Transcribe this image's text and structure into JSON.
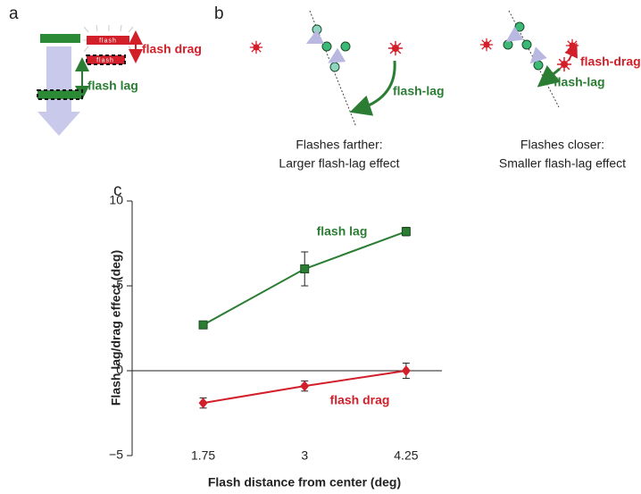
{
  "panel_a": {
    "label": "a",
    "flash_top": "flash",
    "flash_bottom": "flash",
    "drag_label": "flash drag",
    "lag_label": "flash lag"
  },
  "panel_b": {
    "label": "b",
    "left_annotation": "flash-lag",
    "left_caption": [
      "Flashes farther:",
      "Larger flash-lag effect"
    ],
    "right_drag_annotation": "flash-drag",
    "right_lag_annotation": "flash-lag",
    "right_caption": [
      "Flashes closer:",
      "Smaller flash-lag effect"
    ]
  },
  "chart_data": {
    "type": "line",
    "panel_label": "c",
    "xlabel": "Flash distance from center (deg)",
    "ylabel": "Flash lag/drag effect (deg)",
    "x": [
      1.75,
      3,
      4.25
    ],
    "series": [
      {
        "name": "flash lag",
        "color": "#2a7d33",
        "marker": "square",
        "values": [
          2.7,
          6.0,
          8.2
        ],
        "errors": [
          0.2,
          1.0,
          0.25
        ]
      },
      {
        "name": "flash drag",
        "color": "#d21f2a",
        "marker": "diamond",
        "values": [
          -1.9,
          -0.9,
          0.0
        ],
        "errors": [
          0.3,
          0.3,
          0.45
        ]
      }
    ],
    "xlim": [
      0.875,
      4.625
    ],
    "xticks": [
      1.75,
      3,
      4.25
    ],
    "ylim": [
      -5,
      10
    ],
    "yticks": [
      {
        "value": -5,
        "label": "−5"
      },
      0,
      5,
      10
    ],
    "zero_line": true
  }
}
